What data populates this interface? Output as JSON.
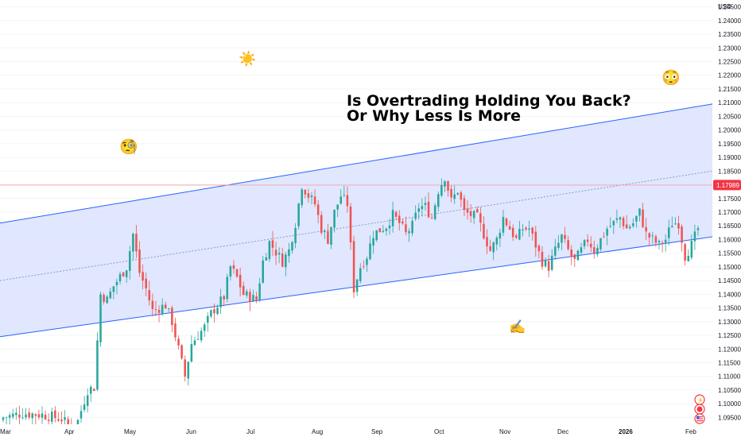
{
  "chart_data": {
    "type": "candlestick",
    "currency_label": "USD",
    "title_lines": [
      "Is Overtrading Holding You Back?",
      "Or Why Less Is More"
    ],
    "y_ticks": [
      "1.24500",
      "1.24000",
      "1.23500",
      "1.23000",
      "1.22500",
      "1.22000",
      "1.21500",
      "1.21000",
      "1.20500",
      "1.20000",
      "1.19500",
      "1.19000",
      "1.18500",
      "1.18000",
      "1.17500",
      "1.17000",
      "1.16500",
      "1.16000",
      "1.15500",
      "1.15000",
      "1.14500",
      "1.14000",
      "1.13500",
      "1.13000",
      "1.12500",
      "1.12000",
      "1.11500",
      "1.11000",
      "1.10500",
      "1.10000",
      "1.09500"
    ],
    "ylim": [
      1.0925,
      1.2475
    ],
    "x_ticks": [
      "Mar",
      "Apr",
      "May",
      "Jun",
      "Jul",
      "Aug",
      "Sep",
      "Oct",
      "Nov",
      "Dec",
      "2026",
      "Feb"
    ],
    "current_price": "1.17989",
    "current_price_value": 1.17989,
    "colors": {
      "up": "#26a69a",
      "down": "#ef5350",
      "channel_line": "#2962ff",
      "channel_fill": "#dbe3ff",
      "price_line": "#f7a1a4",
      "price_tag": "#f23645"
    },
    "channel": {
      "upper": [
        [
          0,
          1.166
        ],
        [
          1,
          1.2095
        ]
      ],
      "lower": [
        [
          0,
          1.1245
        ],
        [
          1,
          1.161
        ]
      ],
      "mid": [
        [
          0,
          1.145
        ],
        [
          1,
          1.185
        ]
      ]
    },
    "emojis": {
      "sun": "☀️",
      "monocle": "🧐",
      "flushed": "😳",
      "writing": "✍️"
    },
    "side_icons": [
      "⚡",
      "⬤",
      "🇺🇸"
    ],
    "anchors": [
      [
        0,
        1.095
      ],
      [
        6,
        1.0965
      ],
      [
        12,
        1.096
      ],
      [
        18,
        1.0945
      ],
      [
        22,
        1.09
      ],
      [
        26,
        1.105
      ],
      [
        28,
        1.106
      ],
      [
        30,
        1.14
      ],
      [
        32,
        1.138
      ],
      [
        34,
        1.143
      ],
      [
        38,
        1.15
      ],
      [
        40,
        1.162
      ],
      [
        42,
        1.148
      ],
      [
        44,
        1.142
      ],
      [
        46,
        1.134
      ],
      [
        50,
        1.136
      ],
      [
        52,
        1.13
      ],
      [
        54,
        1.12
      ],
      [
        56,
        1.11
      ],
      [
        58,
        1.122
      ],
      [
        62,
        1.128
      ],
      [
        64,
        1.133
      ],
      [
        68,
        1.139
      ],
      [
        70,
        1.15
      ],
      [
        72,
        1.146
      ],
      [
        74,
        1.14
      ],
      [
        78,
        1.138
      ],
      [
        80,
        1.152
      ],
      [
        82,
        1.159
      ],
      [
        86,
        1.152
      ],
      [
        88,
        1.156
      ],
      [
        90,
        1.166
      ],
      [
        92,
        1.18
      ],
      [
        94,
        1.176
      ],
      [
        96,
        1.173
      ],
      [
        98,
        1.164
      ],
      [
        100,
        1.16
      ],
      [
        102,
        1.17
      ],
      [
        104,
        1.176
      ],
      [
        106,
        1.173
      ],
      [
        108,
        1.142
      ],
      [
        110,
        1.15
      ],
      [
        112,
        1.154
      ],
      [
        114,
        1.162
      ],
      [
        118,
        1.165
      ],
      [
        120,
        1.169
      ],
      [
        122,
        1.166
      ],
      [
        124,
        1.162
      ],
      [
        126,
        1.165
      ],
      [
        128,
        1.172
      ],
      [
        130,
        1.172
      ],
      [
        132,
        1.168
      ],
      [
        134,
        1.178
      ],
      [
        136,
        1.183
      ],
      [
        138,
        1.174
      ],
      [
        140,
        1.178
      ],
      [
        142,
        1.17
      ],
      [
        146,
        1.168
      ],
      [
        148,
        1.162
      ],
      [
        150,
        1.156
      ],
      [
        152,
        1.16
      ],
      [
        154,
        1.168
      ],
      [
        156,
        1.164
      ],
      [
        158,
        1.16
      ],
      [
        160,
        1.164
      ],
      [
        162,
        1.164
      ],
      [
        164,
        1.158
      ],
      [
        166,
        1.152
      ],
      [
        168,
        1.15
      ],
      [
        170,
        1.156
      ],
      [
        172,
        1.161
      ],
      [
        174,
        1.156
      ],
      [
        176,
        1.152
      ],
      [
        178,
        1.156
      ],
      [
        180,
        1.16
      ],
      [
        182,
        1.156
      ],
      [
        184,
        1.16
      ],
      [
        186,
        1.164
      ],
      [
        188,
        1.166
      ],
      [
        190,
        1.168
      ],
      [
        192,
        1.164
      ],
      [
        194,
        1.166
      ],
      [
        196,
        1.17
      ],
      [
        198,
        1.162
      ],
      [
        200,
        1.16
      ],
      [
        202,
        1.158
      ],
      [
        204,
        1.16
      ],
      [
        206,
        1.166
      ],
      [
        208,
        1.166
      ],
      [
        210,
        1.154
      ],
      [
        212,
        1.158
      ],
      [
        214,
        1.164
      ]
    ],
    "candle_count": 215
  },
  "side_buttons": {
    "flash": "⚡",
    "dot": "⬤",
    "flag": "🇺🇸"
  }
}
